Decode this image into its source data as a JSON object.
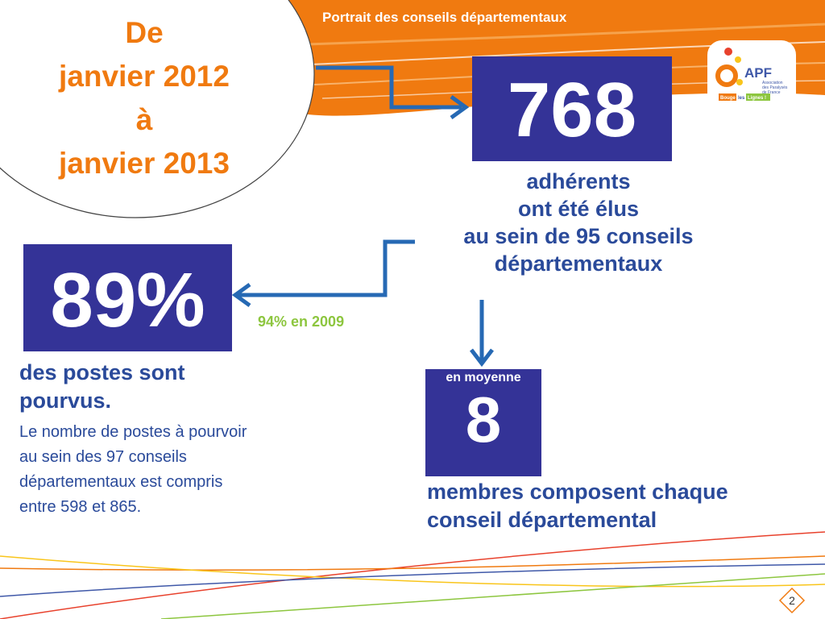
{
  "header": {
    "title": "Portrait des conseils départementaux"
  },
  "period": {
    "line1": "De",
    "line2": "janvier 2012",
    "line3": "à",
    "line4": "janvier 2013"
  },
  "stat_adherents": {
    "value": "768",
    "line1": "adhérents",
    "line2": "ont été élus",
    "line3": "au sein de 95 conseils",
    "line4": "départementaux"
  },
  "stat_postes": {
    "value": "89%",
    "comparison": "94% en 2009",
    "line1": "des postes sont",
    "line2": "pourvus.",
    "detail1": "Le nombre de postes à pourvoir",
    "detail2": "au sein des 97 conseils",
    "detail3": "départementaux est compris",
    "detail4": "entre 598 et 865."
  },
  "stat_membres": {
    "prefix": "en moyenne",
    "value": "8",
    "line1": "membres composent chaque",
    "line2": "conseil départemental"
  },
  "logo": {
    "name": "APF",
    "subtitle1": "Association",
    "subtitle2": "des Paralysés",
    "subtitle3": "de France",
    "tagline1": "Bouge",
    "tagline2": "les",
    "tagline3": "Lignes !"
  },
  "page": {
    "number": "2"
  },
  "colors": {
    "orange": "#f07a10",
    "navy": "#343397",
    "blue": "#2a4a9a",
    "green": "#8dc63f"
  }
}
